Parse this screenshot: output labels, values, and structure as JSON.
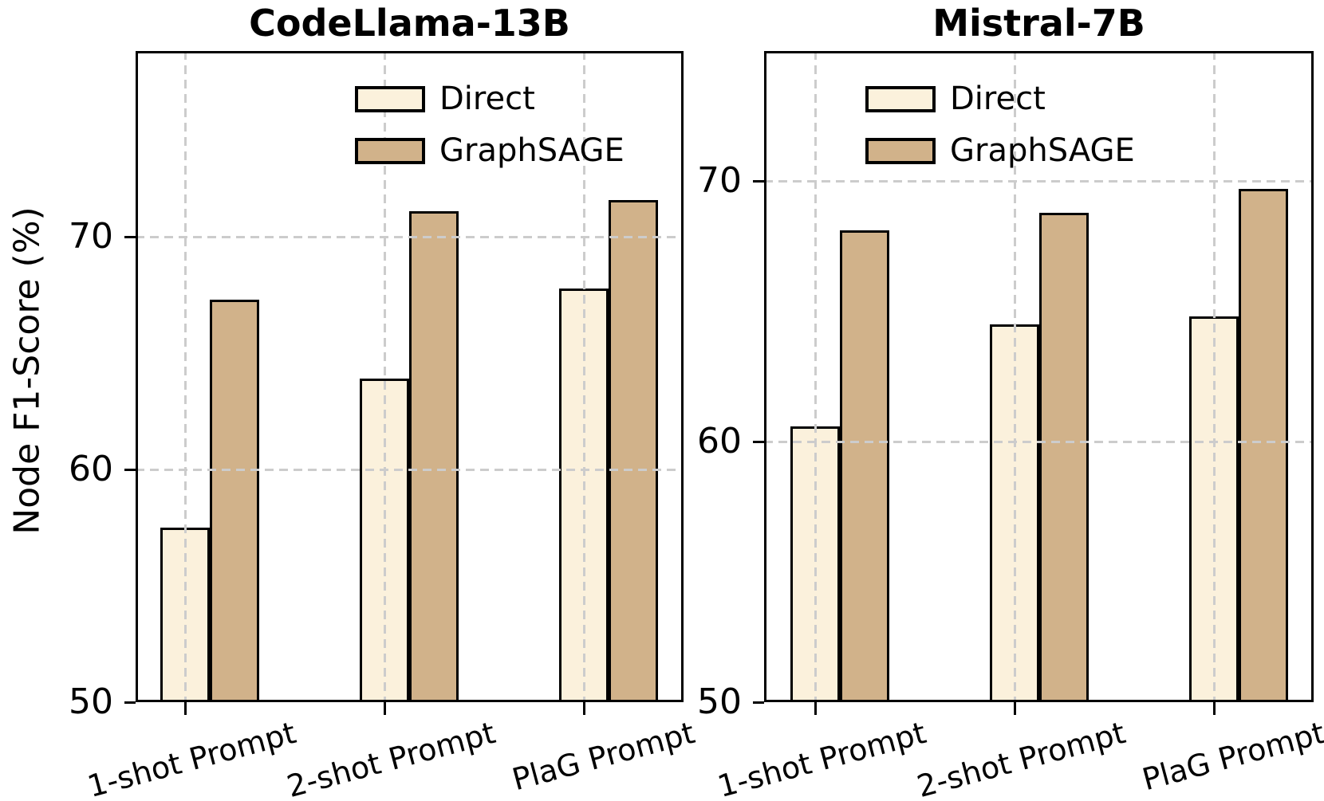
{
  "figure": {
    "y_axis_label": "Node F1-Score (%)",
    "background": "#ffffff",
    "colors": {
      "direct": "#FBF1DC",
      "graphsage": "#D1B28A",
      "edge": "#000000",
      "grid": "#CCCCCC",
      "text": "#000000"
    }
  },
  "chart_data": [
    {
      "type": "bar",
      "title": "CodeLlama-13B",
      "categories": [
        "1-shot Prompt",
        "2-shot Prompt",
        "PlaG Prompt"
      ],
      "series": [
        {
          "name": "Direct",
          "color": "#FBF1DC",
          "values": [
            57.5,
            63.9,
            67.8
          ]
        },
        {
          "name": "GraphSAGE",
          "color": "#D1B28A",
          "values": [
            67.3,
            71.1,
            71.6
          ]
        }
      ],
      "xlabel": "",
      "ylabel": "Node F1-Score (%)",
      "ylim": [
        50,
        78
      ],
      "yticks": [
        50,
        60,
        70
      ],
      "grid": true,
      "grid_style": "dashed, drawn above bars",
      "legend": [
        "Direct",
        "GraphSAGE"
      ],
      "legend_position": "upper right"
    },
    {
      "type": "bar",
      "title": "Mistral-7B",
      "categories": [
        "1-shot Prompt",
        "2-shot Prompt",
        "PlaG Prompt"
      ],
      "series": [
        {
          "name": "Direct",
          "color": "#FBF1DC",
          "values": [
            60.6,
            64.5,
            64.8
          ]
        },
        {
          "name": "GraphSAGE",
          "color": "#D1B28A",
          "values": [
            68.1,
            68.8,
            69.7
          ]
        }
      ],
      "xlabel": "",
      "ylabel": "Node F1-Score (%)",
      "ylim": [
        50,
        75
      ],
      "yticks": [
        50,
        60,
        70
      ],
      "grid": true,
      "grid_style": "dashed, drawn above bars",
      "legend": [
        "Direct",
        "GraphSAGE"
      ],
      "legend_position": "upper right"
    }
  ]
}
